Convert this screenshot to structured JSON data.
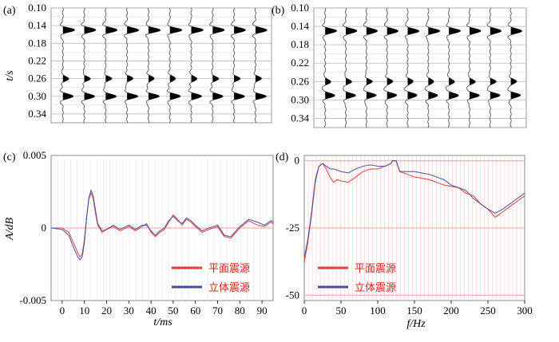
{
  "chart_data": [
    {
      "panel": "(a)",
      "type": "line",
      "ylabel": "t/s",
      "yticks": [
        "0.10",
        "0.14",
        "0.18",
        "0.22",
        "0.26",
        "0.30",
        "0.34"
      ],
      "ylim": [
        0.1,
        0.36
      ],
      "trace_count": 10,
      "wavelets": [
        {
          "t": 0.15,
          "polarity": "positive",
          "amplitude": 1.0
        },
        {
          "t": 0.26,
          "polarity": "positive",
          "amplitude": 0.5
        },
        {
          "t": 0.3,
          "polarity": "positive",
          "amplitude": 0.9
        }
      ]
    },
    {
      "panel": "(b)",
      "type": "line",
      "yticks": [
        "0.10",
        "0.14",
        "0.18",
        "0.22",
        "0.26",
        "0.30",
        "0.34"
      ],
      "ylim": [
        0.1,
        0.36
      ],
      "trace_count": 10,
      "wavelets": [
        {
          "t": 0.15,
          "polarity": "positive",
          "amplitude": 1.0
        },
        {
          "t": 0.26,
          "polarity": "positive",
          "amplitude": 0.5
        },
        {
          "t": 0.29,
          "polarity": "positive",
          "amplitude": 0.85
        }
      ]
    },
    {
      "panel": "(c)",
      "type": "line",
      "xlabel": "t/ms",
      "ylabel": "A/dB",
      "xlim": [
        -5,
        95
      ],
      "ylim": [
        -0.005,
        0.005
      ],
      "xticks": [
        "0",
        "10",
        "20",
        "30",
        "40",
        "50",
        "60",
        "70",
        "80",
        "90"
      ],
      "yticks": [
        "0.005",
        "0",
        "-0.005"
      ],
      "series": [
        {
          "name": "平面震源",
          "color": "#e83a3a",
          "x": [
            -5,
            0,
            3,
            5,
            7,
            8,
            9,
            10,
            11,
            12,
            13,
            14,
            15,
            16,
            18,
            20,
            23,
            26,
            30,
            33,
            36,
            38,
            40,
            42,
            44,
            46,
            48,
            50,
            52,
            54,
            56,
            58,
            60,
            63,
            66,
            70,
            73,
            76,
            80,
            84,
            88,
            91,
            94,
            95
          ],
          "y": [
            0,
            0,
            -0.0003,
            -0.001,
            -0.0017,
            -0.002,
            -0.0018,
            -0.0008,
            0.0008,
            0.002,
            0.0024,
            0.002,
            0.001,
            0.0002,
            -0.0003,
            -0.0001,
            0.0001,
            -0.0002,
            0.0001,
            -0.0002,
            0.0001,
            0.0003,
            -0.0003,
            -0.0006,
            -0.0003,
            -0.0001,
            0.0004,
            0.0009,
            0.0006,
            0.0002,
            0.0006,
            0.0004,
            0.0001,
            -0.0003,
            -0.0001,
            0.0001,
            -0.0006,
            -0.0007,
            0,
            0.0005,
            0.0002,
            0.0001,
            0.0004,
            0.0003
          ]
        },
        {
          "name": "立体震源",
          "color": "#4a4aa0",
          "x": [
            -5,
            0,
            3,
            5,
            7,
            8,
            9,
            10,
            11,
            12,
            13,
            14,
            15,
            16,
            18,
            20,
            23,
            26,
            30,
            33,
            36,
            38,
            40,
            42,
            44,
            46,
            48,
            50,
            52,
            54,
            56,
            58,
            60,
            63,
            66,
            70,
            73,
            76,
            80,
            84,
            88,
            91,
            94,
            95
          ],
          "y": [
            0,
            -0.0001,
            -0.0005,
            -0.0013,
            -0.002,
            -0.0022,
            -0.002,
            -0.001,
            0.0007,
            0.0021,
            0.0026,
            0.0022,
            0.0012,
            0.0003,
            -0.0002,
            -0.0001,
            0.0002,
            -0.0001,
            0.0002,
            -0.0001,
            0.0002,
            0.0002,
            -0.0002,
            -0.0005,
            -0.0002,
            0,
            0.0005,
            0.0008,
            0.0005,
            0.0003,
            0.0007,
            0.0005,
            0.0002,
            -0.0002,
            0,
            0.0002,
            -0.0005,
            -0.0006,
            0.0001,
            0.0006,
            0.0004,
            0.0002,
            0.0005,
            0.0004
          ]
        }
      ]
    },
    {
      "panel": "(d)",
      "type": "line",
      "xlabel": "f/Hz",
      "xlim": [
        0,
        300
      ],
      "ylim": [
        -52,
        2
      ],
      "xticks": [
        "0",
        "50",
        "100",
        "150",
        "200",
        "250",
        "300"
      ],
      "yticks": [
        "0",
        "-25",
        "-50"
      ],
      "series": [
        {
          "name": "平面震源",
          "color": "#e83a3a",
          "x": [
            0,
            5,
            10,
            15,
            20,
            25,
            30,
            35,
            40,
            45,
            50,
            60,
            70,
            80,
            90,
            100,
            110,
            118,
            120,
            125,
            130,
            140,
            150,
            160,
            170,
            180,
            190,
            200,
            210,
            220,
            230,
            240,
            250,
            260,
            270,
            280,
            290,
            300
          ],
          "y": [
            -38,
            -30,
            -20,
            -8,
            -2,
            -1,
            -3,
            -6,
            -8,
            -7,
            -7.5,
            -8,
            -6,
            -4,
            -3,
            -3,
            -2,
            -1,
            0,
            0,
            -4,
            -5,
            -6,
            -6.5,
            -7,
            -8,
            -9,
            -9.5,
            -10,
            -12,
            -13,
            -16,
            -18,
            -21,
            -19,
            -17,
            -15,
            -13
          ]
        },
        {
          "name": "立体震源",
          "color": "#4a4aa0",
          "x": [
            0,
            5,
            10,
            15,
            20,
            25,
            30,
            35,
            40,
            45,
            50,
            60,
            70,
            80,
            90,
            100,
            110,
            118,
            120,
            125,
            130,
            140,
            150,
            160,
            170,
            180,
            190,
            200,
            210,
            220,
            230,
            240,
            250,
            260,
            270,
            280,
            290,
            300
          ],
          "y": [
            -36,
            -29,
            -19,
            -7,
            -2,
            -1,
            -2,
            -3,
            -3,
            -3.5,
            -4,
            -4.5,
            -3,
            -2,
            -1.5,
            -2,
            -2,
            -1,
            0,
            0,
            -4,
            -4,
            -4,
            -4.5,
            -5,
            -6,
            -7,
            -9,
            -10,
            -11,
            -14,
            -16,
            -18,
            -19.5,
            -18,
            -16,
            -14,
            -12
          ]
        }
      ]
    }
  ],
  "legend": {
    "c": [
      {
        "label": "平面震源",
        "color": "#e83a3a"
      },
      {
        "label": "立体震源",
        "color": "#4a4aa0"
      }
    ],
    "d": [
      {
        "label": "平面震源",
        "color": "#e83a3a"
      },
      {
        "label": "立体震源",
        "color": "#4a4aa0"
      }
    ]
  }
}
